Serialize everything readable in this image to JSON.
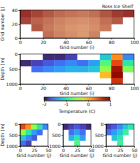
{
  "chart_data": [
    {
      "type": "heatmap",
      "annotation": "Ross Ice Shelf",
      "xlabel": "Grid number (i)",
      "ylabel": "Grid number (j)",
      "x": [
        5,
        15,
        25,
        35,
        45,
        55,
        65,
        75,
        85,
        95
      ],
      "y": [
        5,
        15,
        25,
        35
      ],
      "xlim": [
        0,
        100
      ],
      "ylim": [
        0,
        40
      ],
      "xticks": [
        0,
        20,
        40,
        60,
        80,
        100
      ],
      "yticks": [
        0,
        20,
        40
      ],
      "color": "#8b1a1a",
      "color_range": [
        0,
        800
      ],
      "cells": [
        [
          null,
          null,
          400,
          300,
          250,
          200,
          300,
          null,
          null,
          null
        ],
        [
          null,
          500,
          350,
          280,
          220,
          200,
          250,
          350,
          null,
          null
        ],
        [
          600,
          450,
          380,
          300,
          260,
          240,
          280,
          400,
          500,
          null
        ],
        [
          700,
          600,
          500,
          420,
          380,
          350,
          400,
          520,
          650,
          700
        ]
      ]
    },
    {
      "type": "heatmap",
      "xlabel": "Grid number (i)",
      "ylabel": "Depth (m)",
      "x": [
        5,
        15,
        25,
        35,
        45,
        55,
        65,
        75,
        85,
        95
      ],
      "y": [
        100,
        300,
        500,
        700,
        900
      ],
      "xlim": [
        0,
        100
      ],
      "ylim": [
        1000,
        0
      ],
      "xticks": [
        0,
        20,
        40,
        60,
        80,
        100
      ],
      "yticks": [
        0,
        500,
        1000
      ],
      "color_range": [
        -2,
        1
      ],
      "color_ticks": [
        -2,
        -1,
        0,
        1
      ],
      "color_label": "Temperature (C)",
      "cells": [
        [
          null,
          null,
          -1.9,
          -1.9,
          -1.8,
          null,
          null,
          -1.2,
          0.2,
          -1.5
        ],
        [
          -1.9,
          -1.8,
          -1.7,
          -1.6,
          -1.5,
          -1.6,
          -1.4,
          -0.8,
          0.5,
          -1.0
        ],
        [
          null,
          -1.6,
          -1.5,
          -1.4,
          -1.3,
          -1.3,
          -1.2,
          -0.5,
          0.8,
          -0.6
        ],
        [
          null,
          null,
          null,
          null,
          null,
          null,
          null,
          0.0,
          1.0,
          null
        ],
        [
          null,
          null,
          null,
          null,
          null,
          null,
          null,
          null,
          0.6,
          null
        ]
      ]
    },
    {
      "type": "heatmap",
      "xlabel": "Grid number (j)",
      "ylabel": "Depth (m)",
      "x": [
        5,
        15,
        25,
        35,
        45
      ],
      "y": [
        125,
        375,
        625,
        875
      ],
      "xlim": [
        0,
        50
      ],
      "ylim": [
        1000,
        0
      ],
      "xticks": [
        0,
        25,
        50
      ],
      "yticks": [
        0,
        500,
        1000
      ],
      "color_range": [
        -2,
        1
      ],
      "cells": [
        [
          0.5,
          0.2,
          -0.5,
          -1.0,
          -1.5
        ],
        [
          -0.5,
          -1.0,
          -1.4,
          -1.6,
          null
        ],
        [
          -1.2,
          -1.5,
          -1.7,
          null,
          null
        ],
        [
          -1.6,
          -1.8,
          null,
          null,
          null
        ]
      ]
    },
    {
      "type": "heatmap",
      "xlabel": "Grid number (j)",
      "x": [
        5,
        15,
        25,
        35,
        45
      ],
      "y": [
        125,
        375,
        625,
        875
      ],
      "xlim": [
        0,
        50
      ],
      "ylim": [
        1000,
        0
      ],
      "xticks": [
        0,
        25,
        50
      ],
      "yticks": [
        0,
        500,
        1000
      ],
      "color_range": [
        -2,
        1
      ],
      "cells": [
        [
          -1.9,
          -1.8,
          -1.7,
          -1.8,
          -1.9
        ],
        [
          null,
          -1.6,
          -1.4,
          -1.6,
          null
        ],
        [
          null,
          -1.3,
          -1.0,
          -1.4,
          null
        ],
        [
          null,
          null,
          -0.8,
          null,
          null
        ]
      ]
    },
    {
      "type": "heatmap",
      "xlabel": "Grid number (j)",
      "x": [
        5,
        15,
        25,
        35,
        45
      ],
      "y": [
        125,
        375,
        625,
        875
      ],
      "xlim": [
        0,
        50
      ],
      "ylim": [
        1000,
        0
      ],
      "xticks": [
        0,
        25,
        50
      ],
      "yticks": [
        0,
        500,
        1000
      ],
      "color_range": [
        -2,
        1
      ],
      "cells": [
        [
          -1.8,
          -1.7,
          -1.5,
          -1.2,
          -1.0
        ],
        [
          -1.6,
          -1.4,
          -1.2,
          -0.9,
          null
        ],
        [
          null,
          -1.2,
          -1.0,
          null,
          null
        ],
        [
          null,
          null,
          -0.9,
          null,
          null
        ]
      ]
    }
  ]
}
